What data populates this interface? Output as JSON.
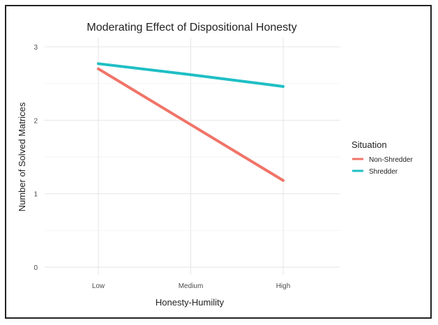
{
  "chart_data": {
    "type": "line",
    "title": "Moderating Effect of Dispositional Honesty",
    "xlabel": "Honesty-Humility",
    "ylabel": "Number of Solved Matrices",
    "categories": [
      "Low",
      "Medium",
      "High"
    ],
    "ylim": [
      0,
      3
    ],
    "yticks": [
      "0",
      "1",
      "2",
      "3"
    ],
    "grid": true,
    "legend": {
      "title": "Situation",
      "position": "right"
    },
    "series": [
      {
        "name": "Non-Shredder",
        "color": "#f07468",
        "values": [
          2.7,
          1.94,
          1.18
        ]
      },
      {
        "name": "Shredder",
        "color": "#1fbfc4",
        "values": [
          2.77,
          2.62,
          2.46
        ]
      }
    ]
  }
}
